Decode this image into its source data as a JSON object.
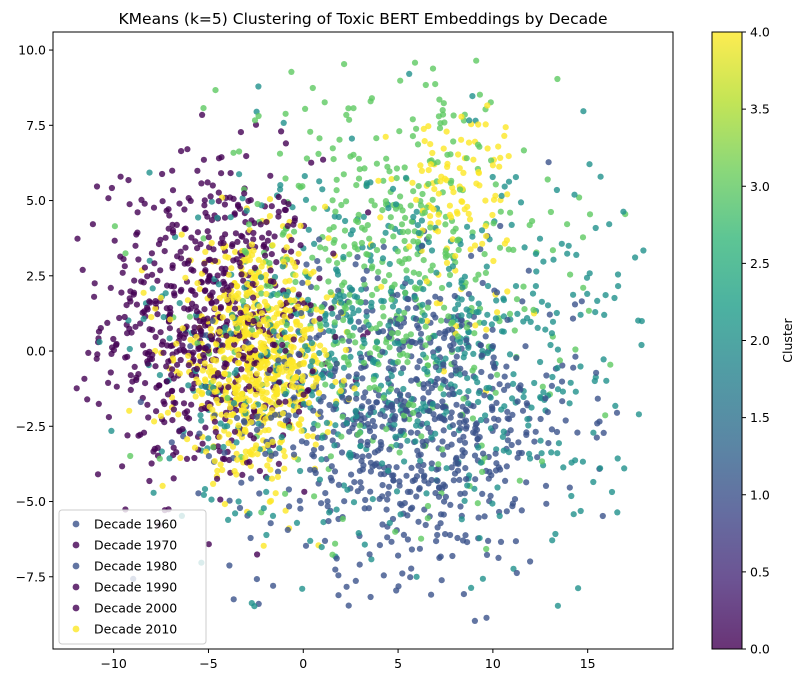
{
  "chart_data": {
    "type": "scatter",
    "title": "KMeans (k=5) Clustering of Toxic BERT Embeddings by Decade",
    "xlabel": "",
    "ylabel": "",
    "xlim": [
      -13.2,
      19.5
    ],
    "ylim": [
      -9.9,
      10.6
    ],
    "x_ticks": [
      -10,
      -5,
      0,
      5,
      10,
      15
    ],
    "x_tick_labels": [
      "−10",
      "−5",
      "0",
      "5",
      "10",
      "15"
    ],
    "y_ticks": [
      -7.5,
      -5.0,
      -2.5,
      0.0,
      2.5,
      5.0,
      7.5,
      10.0
    ],
    "y_tick_labels": [
      "−7.5",
      "−5.0",
      "−2.5",
      "0.0",
      "2.5",
      "5.0",
      "7.5",
      "10.0"
    ],
    "grid": false,
    "colormap": "viridis",
    "colormap_stops": [
      "#440154",
      "#482878",
      "#3e4989",
      "#31688e",
      "#26828e",
      "#1f9e89",
      "#35b779",
      "#6ece58",
      "#b5de2b",
      "#fde725"
    ],
    "colorbar": {
      "label": "Cluster",
      "range": [
        0.0,
        4.0
      ],
      "ticks": [
        0.0,
        0.5,
        1.0,
        1.5,
        2.0,
        2.5,
        3.0,
        3.5,
        4.0
      ],
      "tick_labels": [
        "0.0",
        "0.5",
        "1.0",
        "1.5",
        "2.0",
        "2.5",
        "3.0",
        "3.5",
        "4.0"
      ]
    },
    "legend": {
      "position": "lower-left",
      "entries": [
        {
          "label": "Decade 1960",
          "color": "#3b528b"
        },
        {
          "label": "Decade 1970",
          "color": "#440154"
        },
        {
          "label": "Decade 1980",
          "color": "#3b528b"
        },
        {
          "label": "Decade 1990",
          "color": "#440154"
        },
        {
          "label": "Decade 2000",
          "color": "#440154"
        },
        {
          "label": "Decade 2010",
          "color": "#fde725"
        }
      ]
    },
    "clusters": [
      {
        "cluster": 0,
        "color": "#440154",
        "center": [
          -5.0,
          1.0
        ],
        "spread": [
          2.8,
          2.7
        ],
        "count": 650
      },
      {
        "cluster": 1,
        "color": "#3b528b",
        "center": [
          5.5,
          -2.3
        ],
        "spread": [
          4.5,
          2.5
        ],
        "count": 750
      },
      {
        "cluster": 2,
        "color": "#21918c",
        "center": [
          5.0,
          0.0
        ],
        "spread": [
          6.5,
          3.2
        ],
        "count": 650
      },
      {
        "cluster": 3,
        "color": "#5ec962",
        "center": [
          4.5,
          2.5
        ],
        "spread": [
          4.5,
          3.5
        ],
        "count": 500
      },
      {
        "cluster": 4,
        "color": "#fde725",
        "center": [
          -2.5,
          -0.3
        ],
        "spread": [
          2.0,
          1.8
        ],
        "count": 700
      },
      {
        "cluster": 4,
        "color": "#fde725",
        "center": [
          8.0,
          5.0
        ],
        "spread": [
          1.6,
          1.8
        ],
        "count": 120
      }
    ],
    "point_alpha": 0.8
  }
}
